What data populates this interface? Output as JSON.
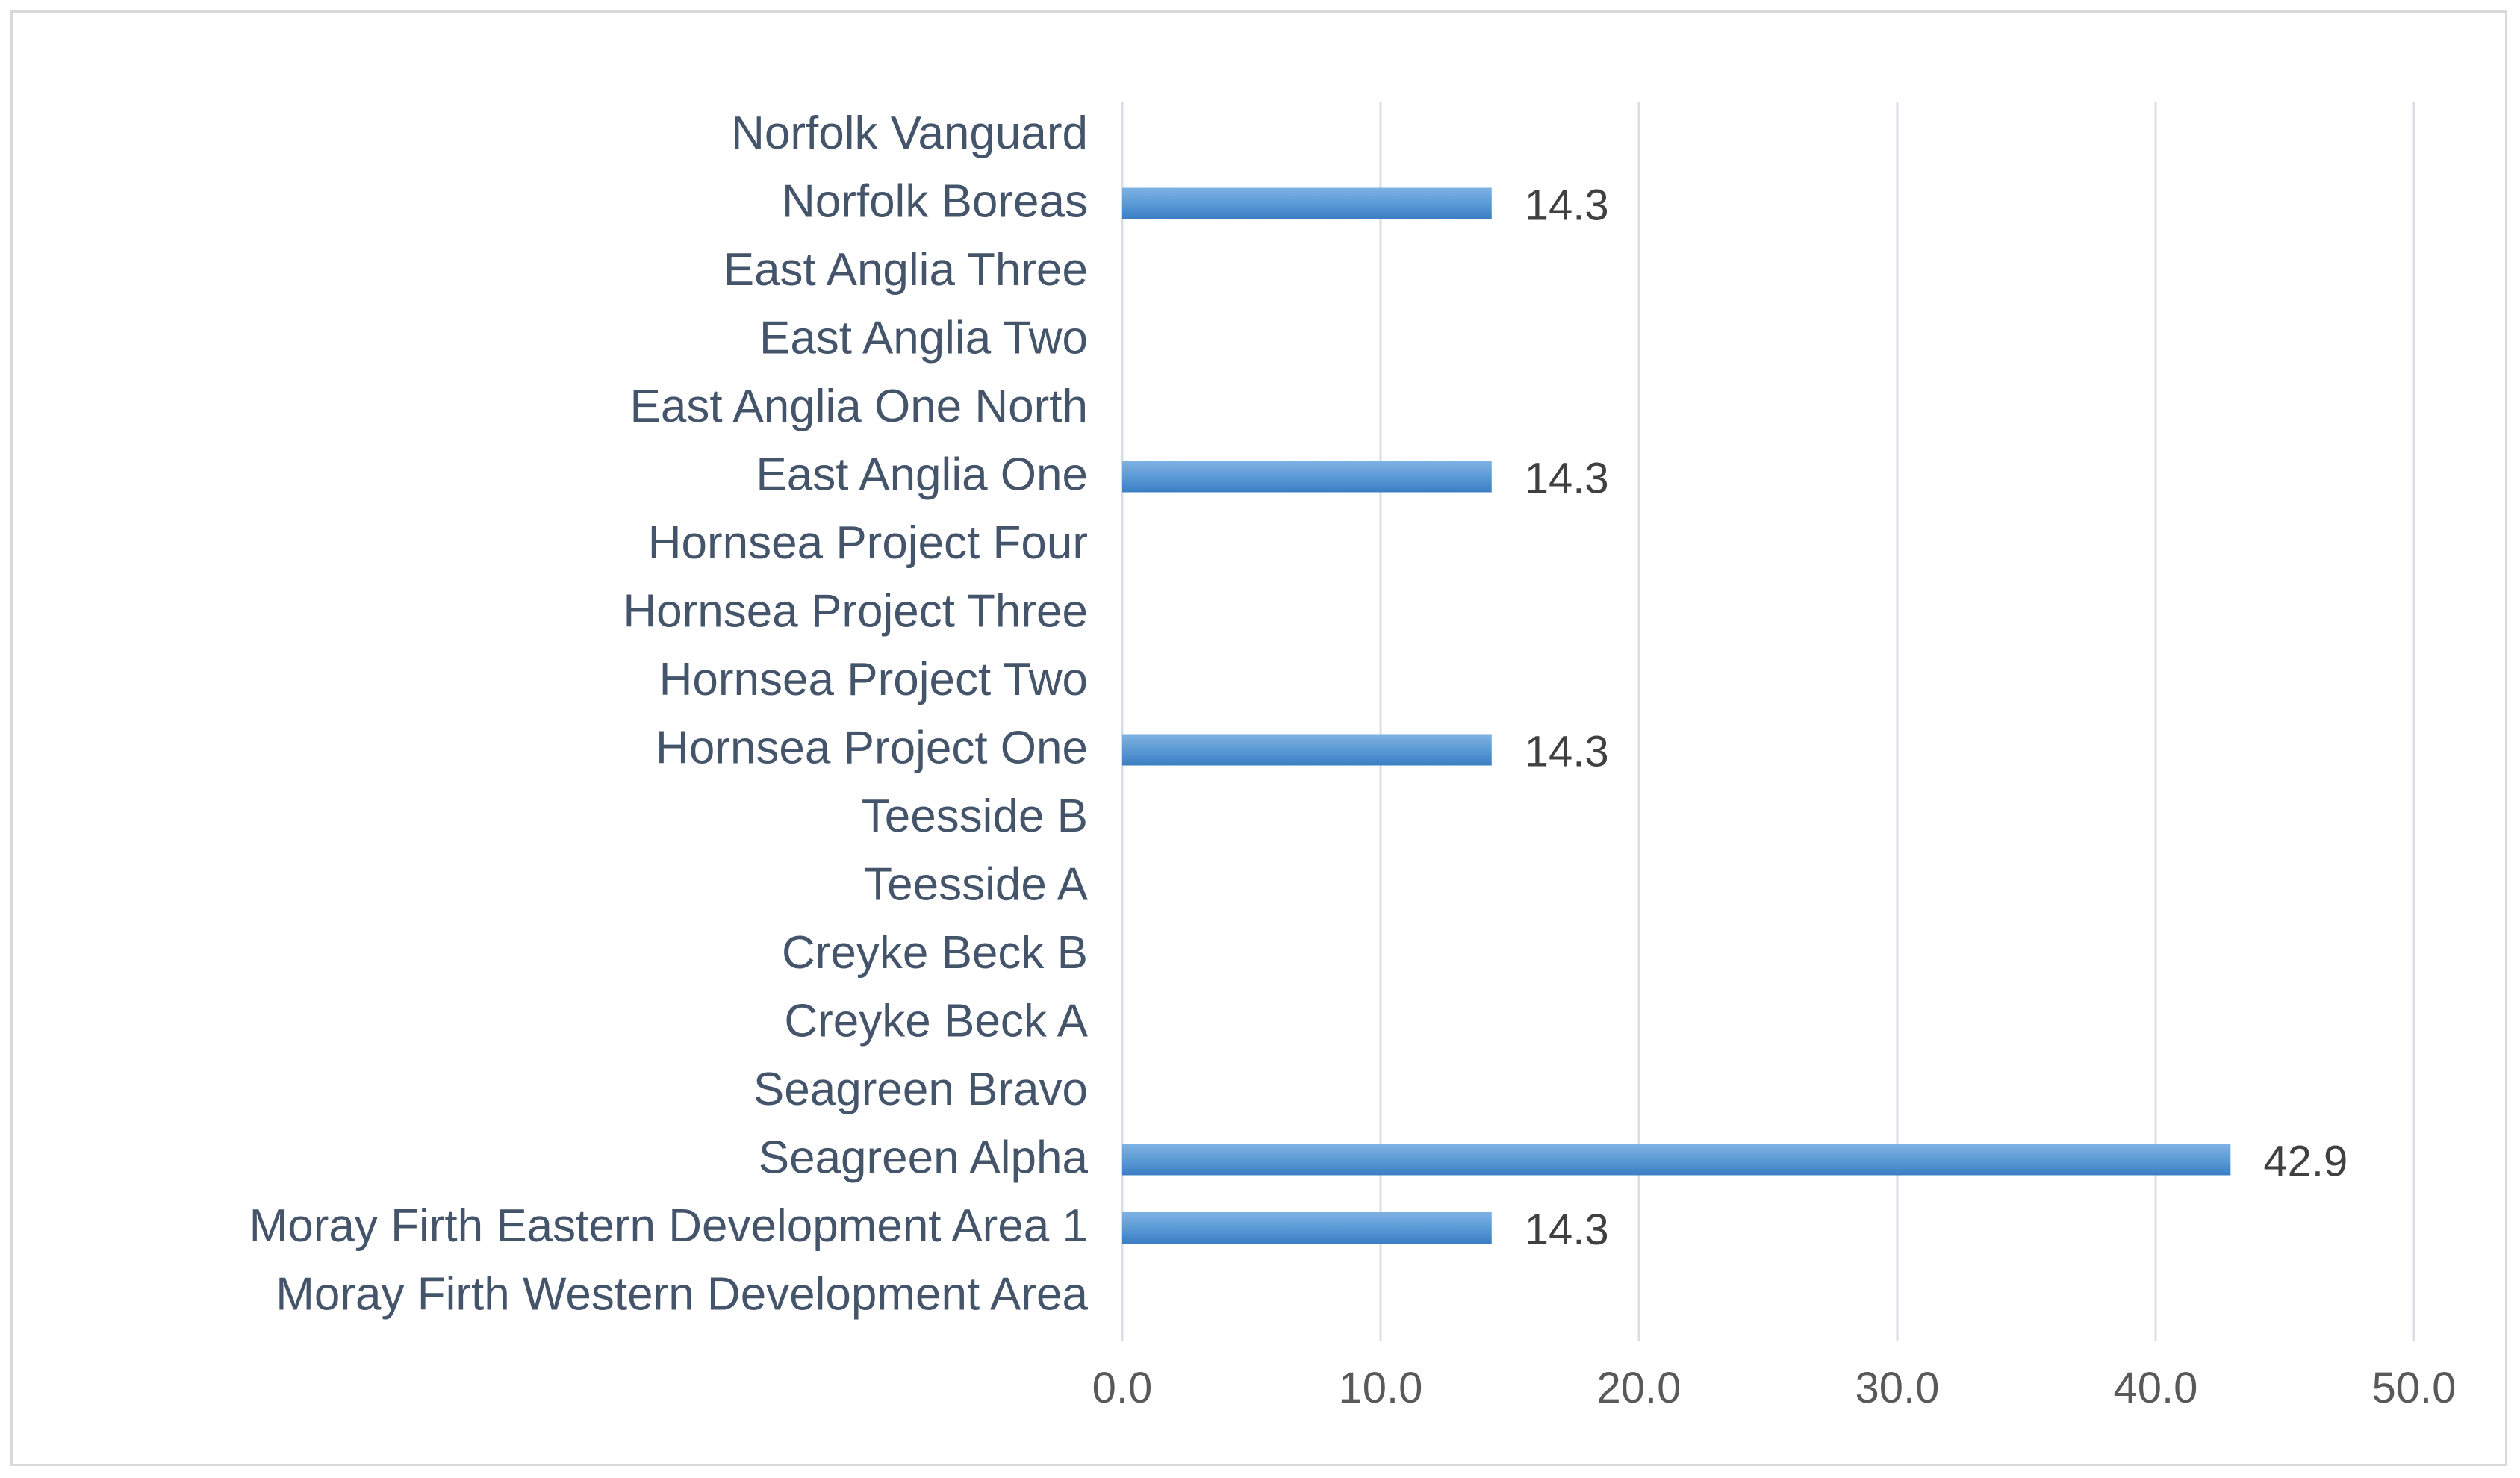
{
  "chart_data": {
    "type": "bar",
    "orientation": "horizontal",
    "title": "",
    "xlabel": "",
    "ylabel": "",
    "xlim": [
      0,
      50
    ],
    "x_ticks": [
      "0.0",
      "10.0",
      "20.0",
      "30.0",
      "40.0",
      "50.0"
    ],
    "x_tick_values": [
      0,
      10,
      20,
      30,
      40,
      50
    ],
    "grid": "vertical",
    "legend": "none",
    "categories": [
      "Norfolk Vanguard",
      "Norfolk Boreas",
      "East Anglia Three",
      "East Anglia Two",
      "East Anglia One North",
      "East Anglia One",
      "Hornsea Project Four",
      "Hornsea Project Three",
      "Hornsea Project Two",
      "Hornsea Project One",
      "Teesside B",
      "Teesside A",
      "Creyke Beck B",
      "Creyke Beck A",
      "Seagreen Bravo",
      "Seagreen Alpha",
      "Moray Firth Eastern Development Area 1",
      "Moray Firth Western Development Area"
    ],
    "values": [
      0,
      14.3,
      0,
      0,
      0,
      14.3,
      0,
      0,
      0,
      14.3,
      0,
      0,
      0,
      0,
      0,
      42.9,
      14.3,
      0
    ],
    "data_labels": [
      "",
      "14.3",
      "",
      "",
      "",
      "14.3",
      "",
      "",
      "",
      "14.3",
      "",
      "",
      "",
      "",
      "",
      "42.9",
      "14.3",
      ""
    ],
    "colors": {
      "bar": "#5b9bd5",
      "bar_dark": "#3a7ec4",
      "bar_light": "#7fb2e3",
      "gridline": "#d9dde6",
      "axis_label": "#44546a"
    }
  }
}
